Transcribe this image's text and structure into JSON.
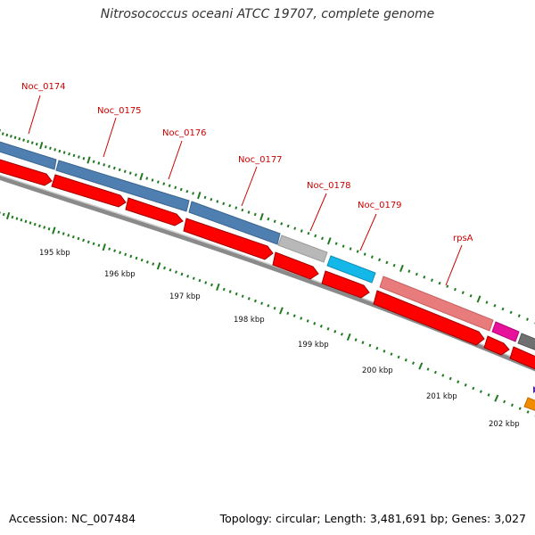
{
  "title": "Nitrosococcus oceani ATCC 19707, complete genome",
  "accession": "Accession: NC_007484",
  "topology": "Topology: circular; Length: 3,481,691 bp; Genes: 3,027",
  "genes": [
    {
      "label": "Noc_0174"
    },
    {
      "label": "Noc_0175"
    },
    {
      "label": "Noc_0176"
    },
    {
      "label": "Noc_0177"
    },
    {
      "label": "Noc_0178"
    },
    {
      "label": "Noc_0179"
    },
    {
      "label": "rpsA"
    }
  ],
  "kbp_labels": [
    "195 kbp",
    "196 kbp",
    "197 kbp",
    "198 kbp",
    "199 kbp",
    "200 kbp",
    "201 kbp",
    "202 kbp"
  ],
  "colors": {
    "cds_forward": "#ff0000",
    "gene_blue": "#4f7fb0",
    "gene_gray": "#b8b8b8",
    "gene_cyan": "#14b8e8",
    "gene_pink": "#e87c7c",
    "gene_magenta": "#e6109a",
    "gene_dark_gray": "#707070",
    "tick_green": "#1f7a1f",
    "backbone_gray": "#8a8a8a",
    "label_red": "#cc0000",
    "feature_orange": "#f08c00",
    "feature_purple": "#5a2aa8"
  }
}
